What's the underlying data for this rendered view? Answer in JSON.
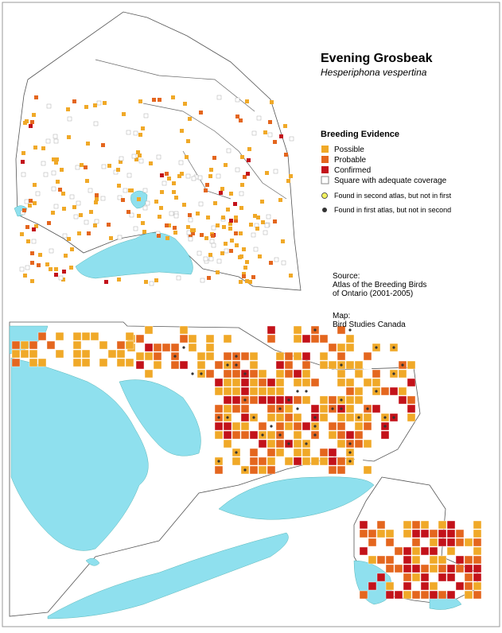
{
  "header": {
    "title": "Evening Grosbeak",
    "subtitle": "Hesperiphona vespertina"
  },
  "legend": {
    "title": "Breeding Evidence",
    "items": [
      "Possible",
      "Probable",
      "Confirmed",
      "Square with adequate coverage"
    ],
    "markers": [
      "Found in second atlas, but not in first",
      "Found in first atlas, but not in second"
    ]
  },
  "source": {
    "label": "Source:",
    "lines": [
      "Atlas of the Breeding Birds",
      "of Ontario (2001-2005)"
    ]
  },
  "credit": {
    "label": "Map:",
    "text": "Bird Studies Canada"
  }
}
